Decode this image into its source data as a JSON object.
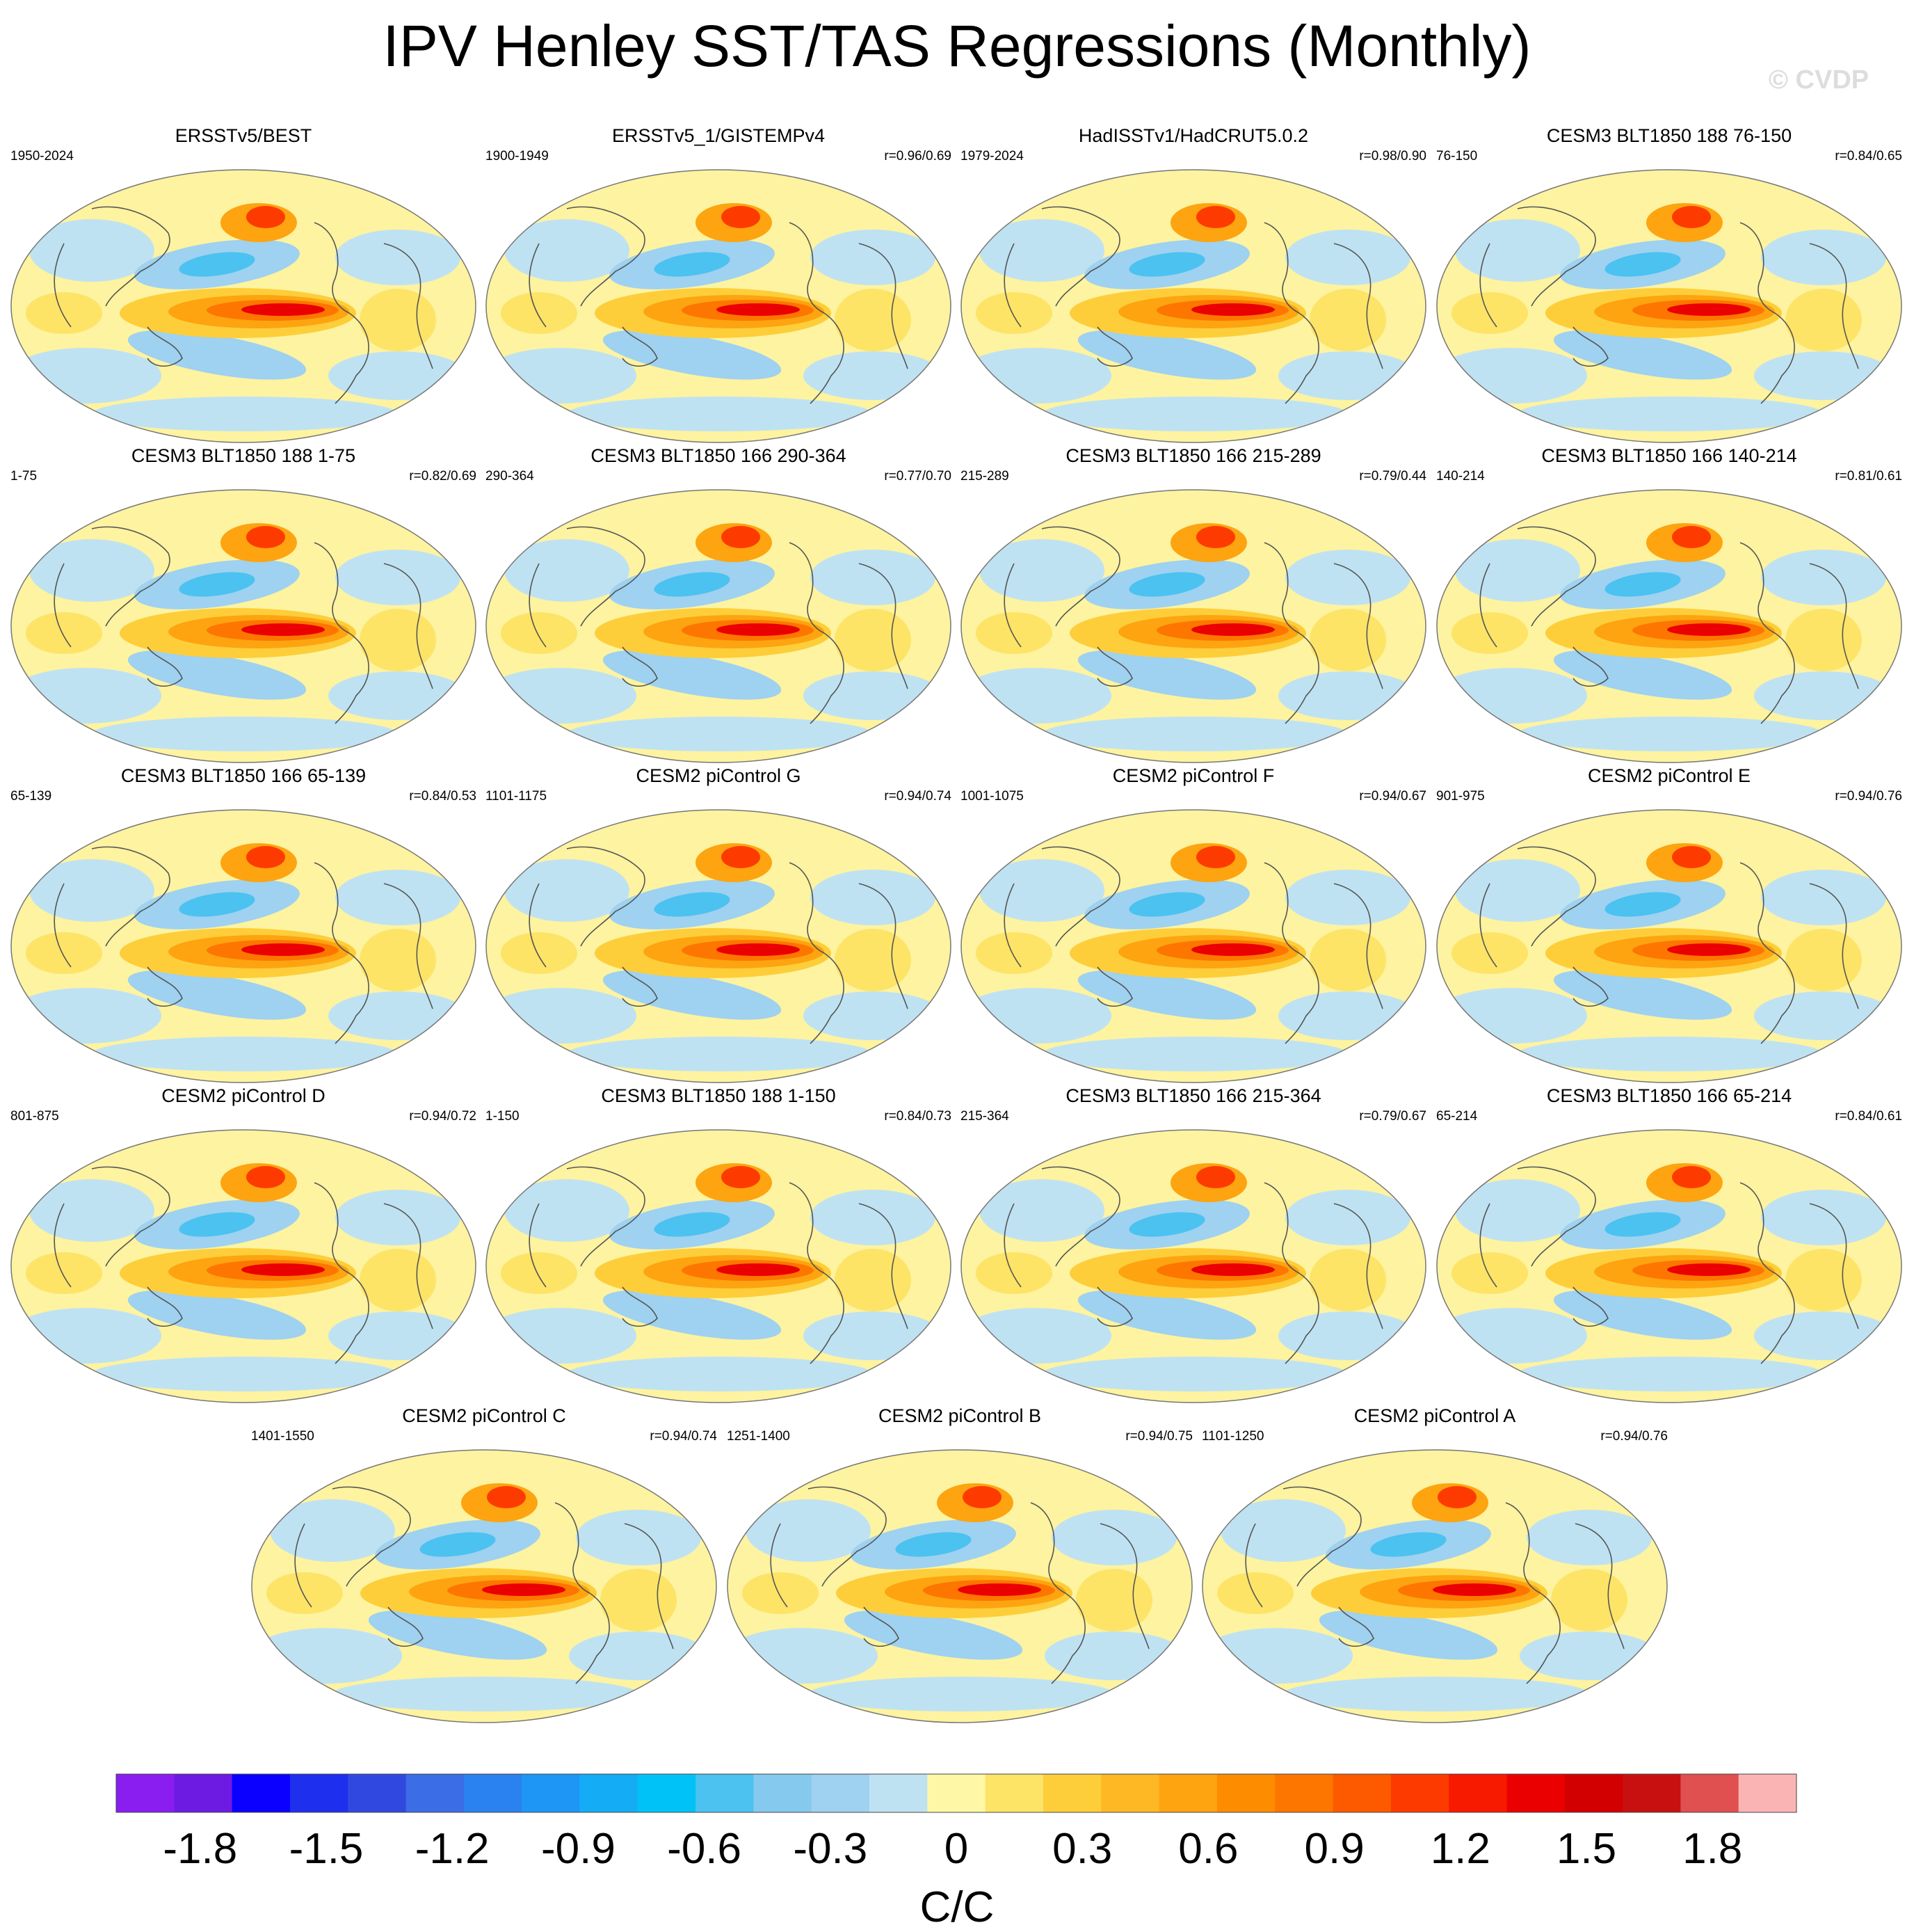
{
  "title": "IPV Henley SST/TAS Regressions (Monthly)",
  "watermark": "© CVDP",
  "panels": [
    {
      "title": "ERSSTv5/BEST",
      "period": "1950-2024",
      "corr": ""
    },
    {
      "title": "ERSSTv5_1/GISTEMPv4",
      "period": "1900-1949",
      "corr": "r=0.96/0.69"
    },
    {
      "title": "HadISSTv1/HadCRUT5.0.2",
      "period": "1979-2024",
      "corr": "r=0.98/0.90"
    },
    {
      "title": "CESM3 BLT1850 188 76-150",
      "period": "76-150",
      "corr": "r=0.84/0.65"
    },
    {
      "title": "CESM3 BLT1850 188 1-75",
      "period": "1-75",
      "corr": "r=0.82/0.69"
    },
    {
      "title": "CESM3 BLT1850 166 290-364",
      "period": "290-364",
      "corr": "r=0.77/0.70"
    },
    {
      "title": "CESM3 BLT1850 166 215-289",
      "period": "215-289",
      "corr": "r=0.79/0.44"
    },
    {
      "title": "CESM3 BLT1850 166 140-214",
      "period": "140-214",
      "corr": "r=0.81/0.61"
    },
    {
      "title": "CESM3 BLT1850 166 65-139",
      "period": "65-139",
      "corr": "r=0.84/0.53"
    },
    {
      "title": "CESM2 piControl G",
      "period": "1101-1175",
      "corr": "r=0.94/0.74"
    },
    {
      "title": "CESM2 piControl F",
      "period": "1001-1075",
      "corr": "r=0.94/0.67"
    },
    {
      "title": "CESM2 piControl E",
      "period": "901-975",
      "corr": "r=0.94/0.76"
    },
    {
      "title": "CESM2 piControl D",
      "period": "801-875",
      "corr": "r=0.94/0.72"
    },
    {
      "title": "CESM3 BLT1850 188 1-150",
      "period": "1-150",
      "corr": "r=0.84/0.73"
    },
    {
      "title": "CESM3 BLT1850 166 215-364",
      "period": "215-364",
      "corr": "r=0.79/0.67"
    },
    {
      "title": "CESM3 BLT1850 166 65-214",
      "period": "65-214",
      "corr": "r=0.84/0.61"
    },
    {
      "title": "CESM2 piControl C",
      "period": "1401-1550",
      "corr": "r=0.94/0.74"
    },
    {
      "title": "CESM2 piControl B",
      "period": "1251-1400",
      "corr": "r=0.94/0.75"
    },
    {
      "title": "CESM2 piControl A",
      "period": "1101-1250",
      "corr": "r=0.94/0.76"
    }
  ],
  "chart_data": {
    "type": "heatmap",
    "title": "IPV Henley SST/TAS Regressions (Monthly)",
    "colorbar": {
      "label": "C/C",
      "levels": [
        -2.0,
        -1.9,
        -1.8,
        -1.7,
        -1.6,
        -1.5,
        -1.4,
        -1.3,
        -1.2,
        -1.1,
        -1.0,
        -0.9,
        -0.8,
        -0.7,
        -0.6,
        -0.5,
        -0.4,
        -0.3,
        -0.2,
        -0.1,
        0,
        0.1,
        0.2,
        0.3,
        0.4,
        0.5,
        0.6,
        0.7,
        0.8,
        0.9,
        1.0,
        1.1,
        1.2,
        1.3,
        1.4,
        1.5,
        1.6,
        1.7,
        1.8,
        1.9,
        2.0
      ],
      "tick_labels": [
        "-1.8",
        "-1.5",
        "-1.2",
        "-0.9",
        "-0.6",
        "-0.3",
        "0",
        "0.3",
        "0.6",
        "0.9",
        "1.2",
        "1.5",
        "1.8"
      ],
      "tick_values": [
        -1.8,
        -1.5,
        -1.2,
        -0.9,
        -0.6,
        -0.3,
        0,
        0.3,
        0.6,
        0.9,
        1.2,
        1.5,
        1.8
      ],
      "colors": [
        "#8a1df0",
        "#6d1be3",
        "#0b00ff",
        "#1e2fee",
        "#3148e0",
        "#3b6de6",
        "#2a82f0",
        "#1e96f6",
        "#14adf5",
        "#00c2f7",
        "#4bc2ef",
        "#86c9ee",
        "#9fd1f0",
        "#bfe2f2",
        "#fef8a6",
        "#fde467",
        "#fdce3a",
        "#fdb824",
        "#fda410",
        "#fd8c00",
        "#fd7600",
        "#fd5a00",
        "#fd3b00",
        "#f81a00",
        "#ea0000",
        "#d20000",
        "#c81010",
        "#e05050",
        "#fbb4b4"
      ],
      "range": [
        -2.0,
        2.0
      ]
    }
  }
}
